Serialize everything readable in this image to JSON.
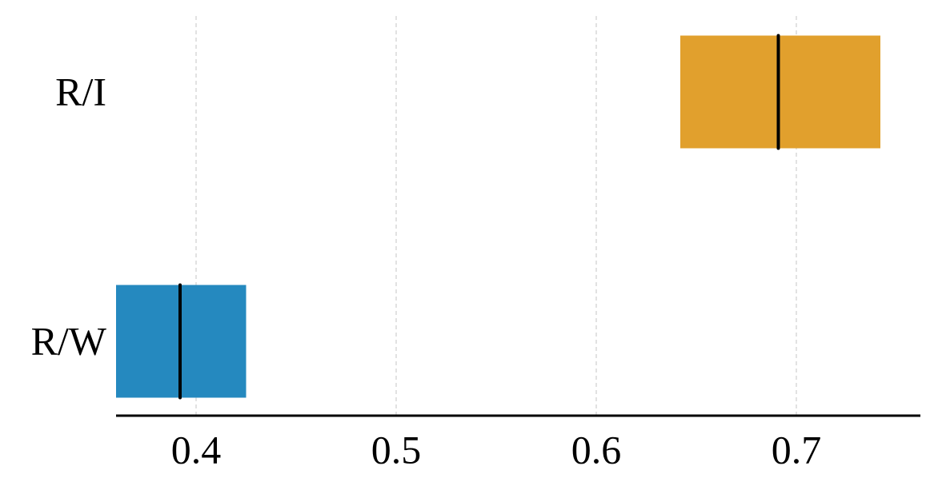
{
  "chart_data": {
    "type": "box",
    "orientation": "horizontal",
    "categories": [
      "R/I",
      "R/W"
    ],
    "low": [
      0.642,
      0.36
    ],
    "median": [
      0.691,
      0.392
    ],
    "high": [
      0.742,
      0.425
    ],
    "colors": [
      "#e1a02d",
      "#2589bf"
    ],
    "xlim": [
      0.36,
      0.762
    ],
    "xticks": [
      0.4,
      0.5,
      0.6,
      0.7
    ],
    "grid": true
  }
}
